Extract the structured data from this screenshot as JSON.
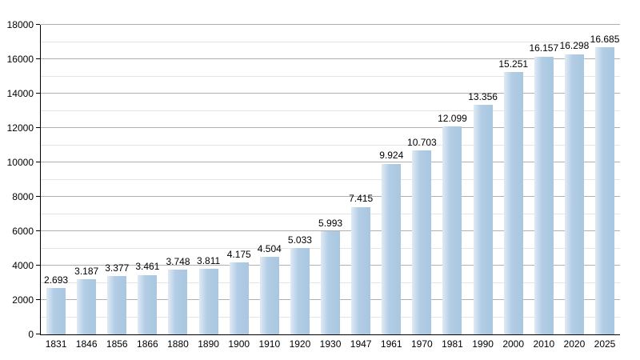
{
  "chart_data": {
    "type": "bar",
    "title": "",
    "xlabel": "",
    "ylabel": "",
    "categories": [
      "1831",
      "1846",
      "1856",
      "1866",
      "1880",
      "1890",
      "1900",
      "1910",
      "1920",
      "1930",
      "1947",
      "1961",
      "1970",
      "1981",
      "1990",
      "2000",
      "2010",
      "2020",
      "2025"
    ],
    "values": [
      2693,
      3187,
      3377,
      3461,
      3748,
      3811,
      4175,
      4504,
      5033,
      5993,
      7415,
      9924,
      10703,
      12099,
      13356,
      15251,
      16157,
      16298,
      16685
    ],
    "value_labels": [
      "2.693",
      "3.187",
      "3.377",
      "3.461",
      "3.748",
      "3.811",
      "4.175",
      "4.504",
      "5.033",
      "5.993",
      "7.415",
      "9.924",
      "10.703",
      "12.099",
      "13.356",
      "15.251",
      "16.157",
      "16.298",
      "16.685"
    ],
    "ylim": [
      0,
      18000
    ],
    "y_major_ticks": [
      0,
      2000,
      4000,
      6000,
      8000,
      10000,
      12000,
      14000,
      16000,
      18000
    ],
    "y_minor_step": 1000,
    "grid": "horizontal major and minor gridlines, no vertical gridlines",
    "legend": null,
    "colors": {
      "bar_fill": "#a9c7e1",
      "bar_fill_light": "#dfeaf5",
      "major_grid": "#b0b0b0",
      "minor_grid": "#e4e4e4",
      "axis": "#000000",
      "text": "#000000",
      "background": "#ffffff"
    }
  }
}
